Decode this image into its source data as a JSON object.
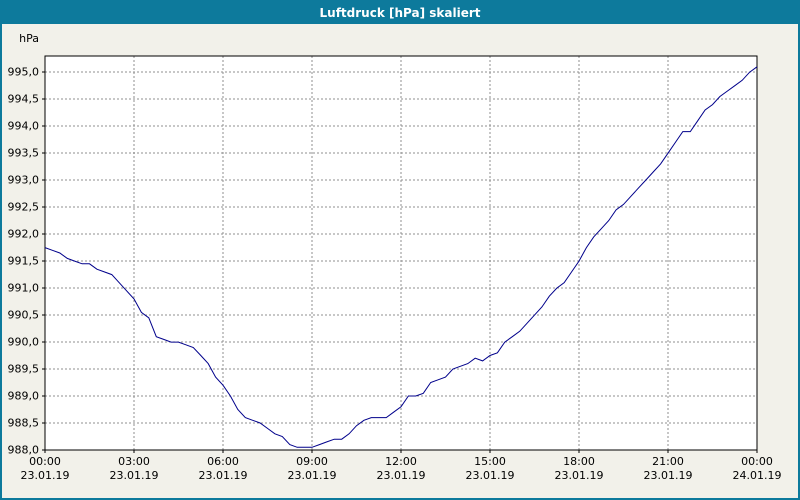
{
  "window": {
    "title": "Luftdruck [hPa] skaliert",
    "title_bar_color": "#0d7a9c"
  },
  "colors": {
    "window_background": "#f2f1ea",
    "plot_background": "#ffffff",
    "grid": "#8f8f8f",
    "axis": "#000000",
    "line": "#00008b"
  },
  "chart_data": {
    "type": "line",
    "title": "Luftdruck [hPa] skaliert",
    "ylabel": "hPa",
    "xlabel": "",
    "ylim": [
      988.0,
      995.3
    ],
    "x_range_hours": [
      0,
      24
    ],
    "grid": "dashed",
    "legend": "none",
    "y_ticks": [
      988.0,
      988.5,
      989.0,
      989.5,
      990.0,
      990.5,
      991.0,
      991.5,
      992.0,
      992.5,
      993.0,
      993.5,
      994.0,
      994.5,
      995.0
    ],
    "y_tick_labels": [
      "988,0",
      "988,5",
      "989,0",
      "989,5",
      "990,0",
      "990,5",
      "991,0",
      "991,5",
      "992,0",
      "992,5",
      "993,0",
      "993,5",
      "994,0",
      "994,5",
      "995,0"
    ],
    "x_ticks": [
      {
        "hour": 0,
        "time": "00:00",
        "date": "23.01.19"
      },
      {
        "hour": 3,
        "time": "03:00",
        "date": "23.01.19"
      },
      {
        "hour": 6,
        "time": "06:00",
        "date": "23.01.19"
      },
      {
        "hour": 9,
        "time": "09:00",
        "date": "23.01.19"
      },
      {
        "hour": 12,
        "time": "12:00",
        "date": "23.01.19"
      },
      {
        "hour": 15,
        "time": "15:00",
        "date": "23.01.19"
      },
      {
        "hour": 18,
        "time": "18:00",
        "date": "23.01.19"
      },
      {
        "hour": 21,
        "time": "21:00",
        "date": "23.01.19"
      },
      {
        "hour": 24,
        "time": "00:00",
        "date": "24.01.19"
      }
    ],
    "series": [
      {
        "name": "Luftdruck [hPa]",
        "color": "#00008b",
        "x_start_hour": 0,
        "x_step_hours": 0.25,
        "values": [
          991.75,
          991.7,
          991.65,
          991.55,
          991.5,
          991.45,
          991.45,
          991.35,
          991.3,
          991.25,
          991.1,
          990.95,
          990.8,
          990.55,
          990.45,
          990.1,
          990.05,
          990.0,
          990.0,
          989.95,
          989.9,
          989.75,
          989.6,
          989.35,
          989.2,
          989.0,
          988.75,
          988.6,
          988.55,
          988.5,
          988.4,
          988.3,
          988.25,
          988.1,
          988.05,
          988.05,
          988.05,
          988.1,
          988.15,
          988.2,
          988.2,
          988.3,
          988.45,
          988.55,
          988.6,
          988.6,
          988.6,
          988.7,
          988.8,
          989.0,
          989.0,
          989.05,
          989.25,
          989.3,
          989.35,
          989.5,
          989.55,
          989.6,
          989.7,
          989.65,
          989.75,
          989.8,
          990.0,
          990.1,
          990.2,
          990.35,
          990.5,
          990.65,
          990.85,
          991.0,
          991.1,
          991.3,
          991.5,
          991.75,
          991.95,
          992.1,
          992.25,
          992.45,
          992.55,
          992.7,
          992.85,
          993.0,
          993.15,
          993.3,
          993.5,
          993.7,
          993.9,
          993.9,
          994.1,
          994.3,
          994.4,
          994.55,
          994.65,
          994.75,
          994.85,
          995.0,
          995.1
        ]
      }
    ]
  }
}
